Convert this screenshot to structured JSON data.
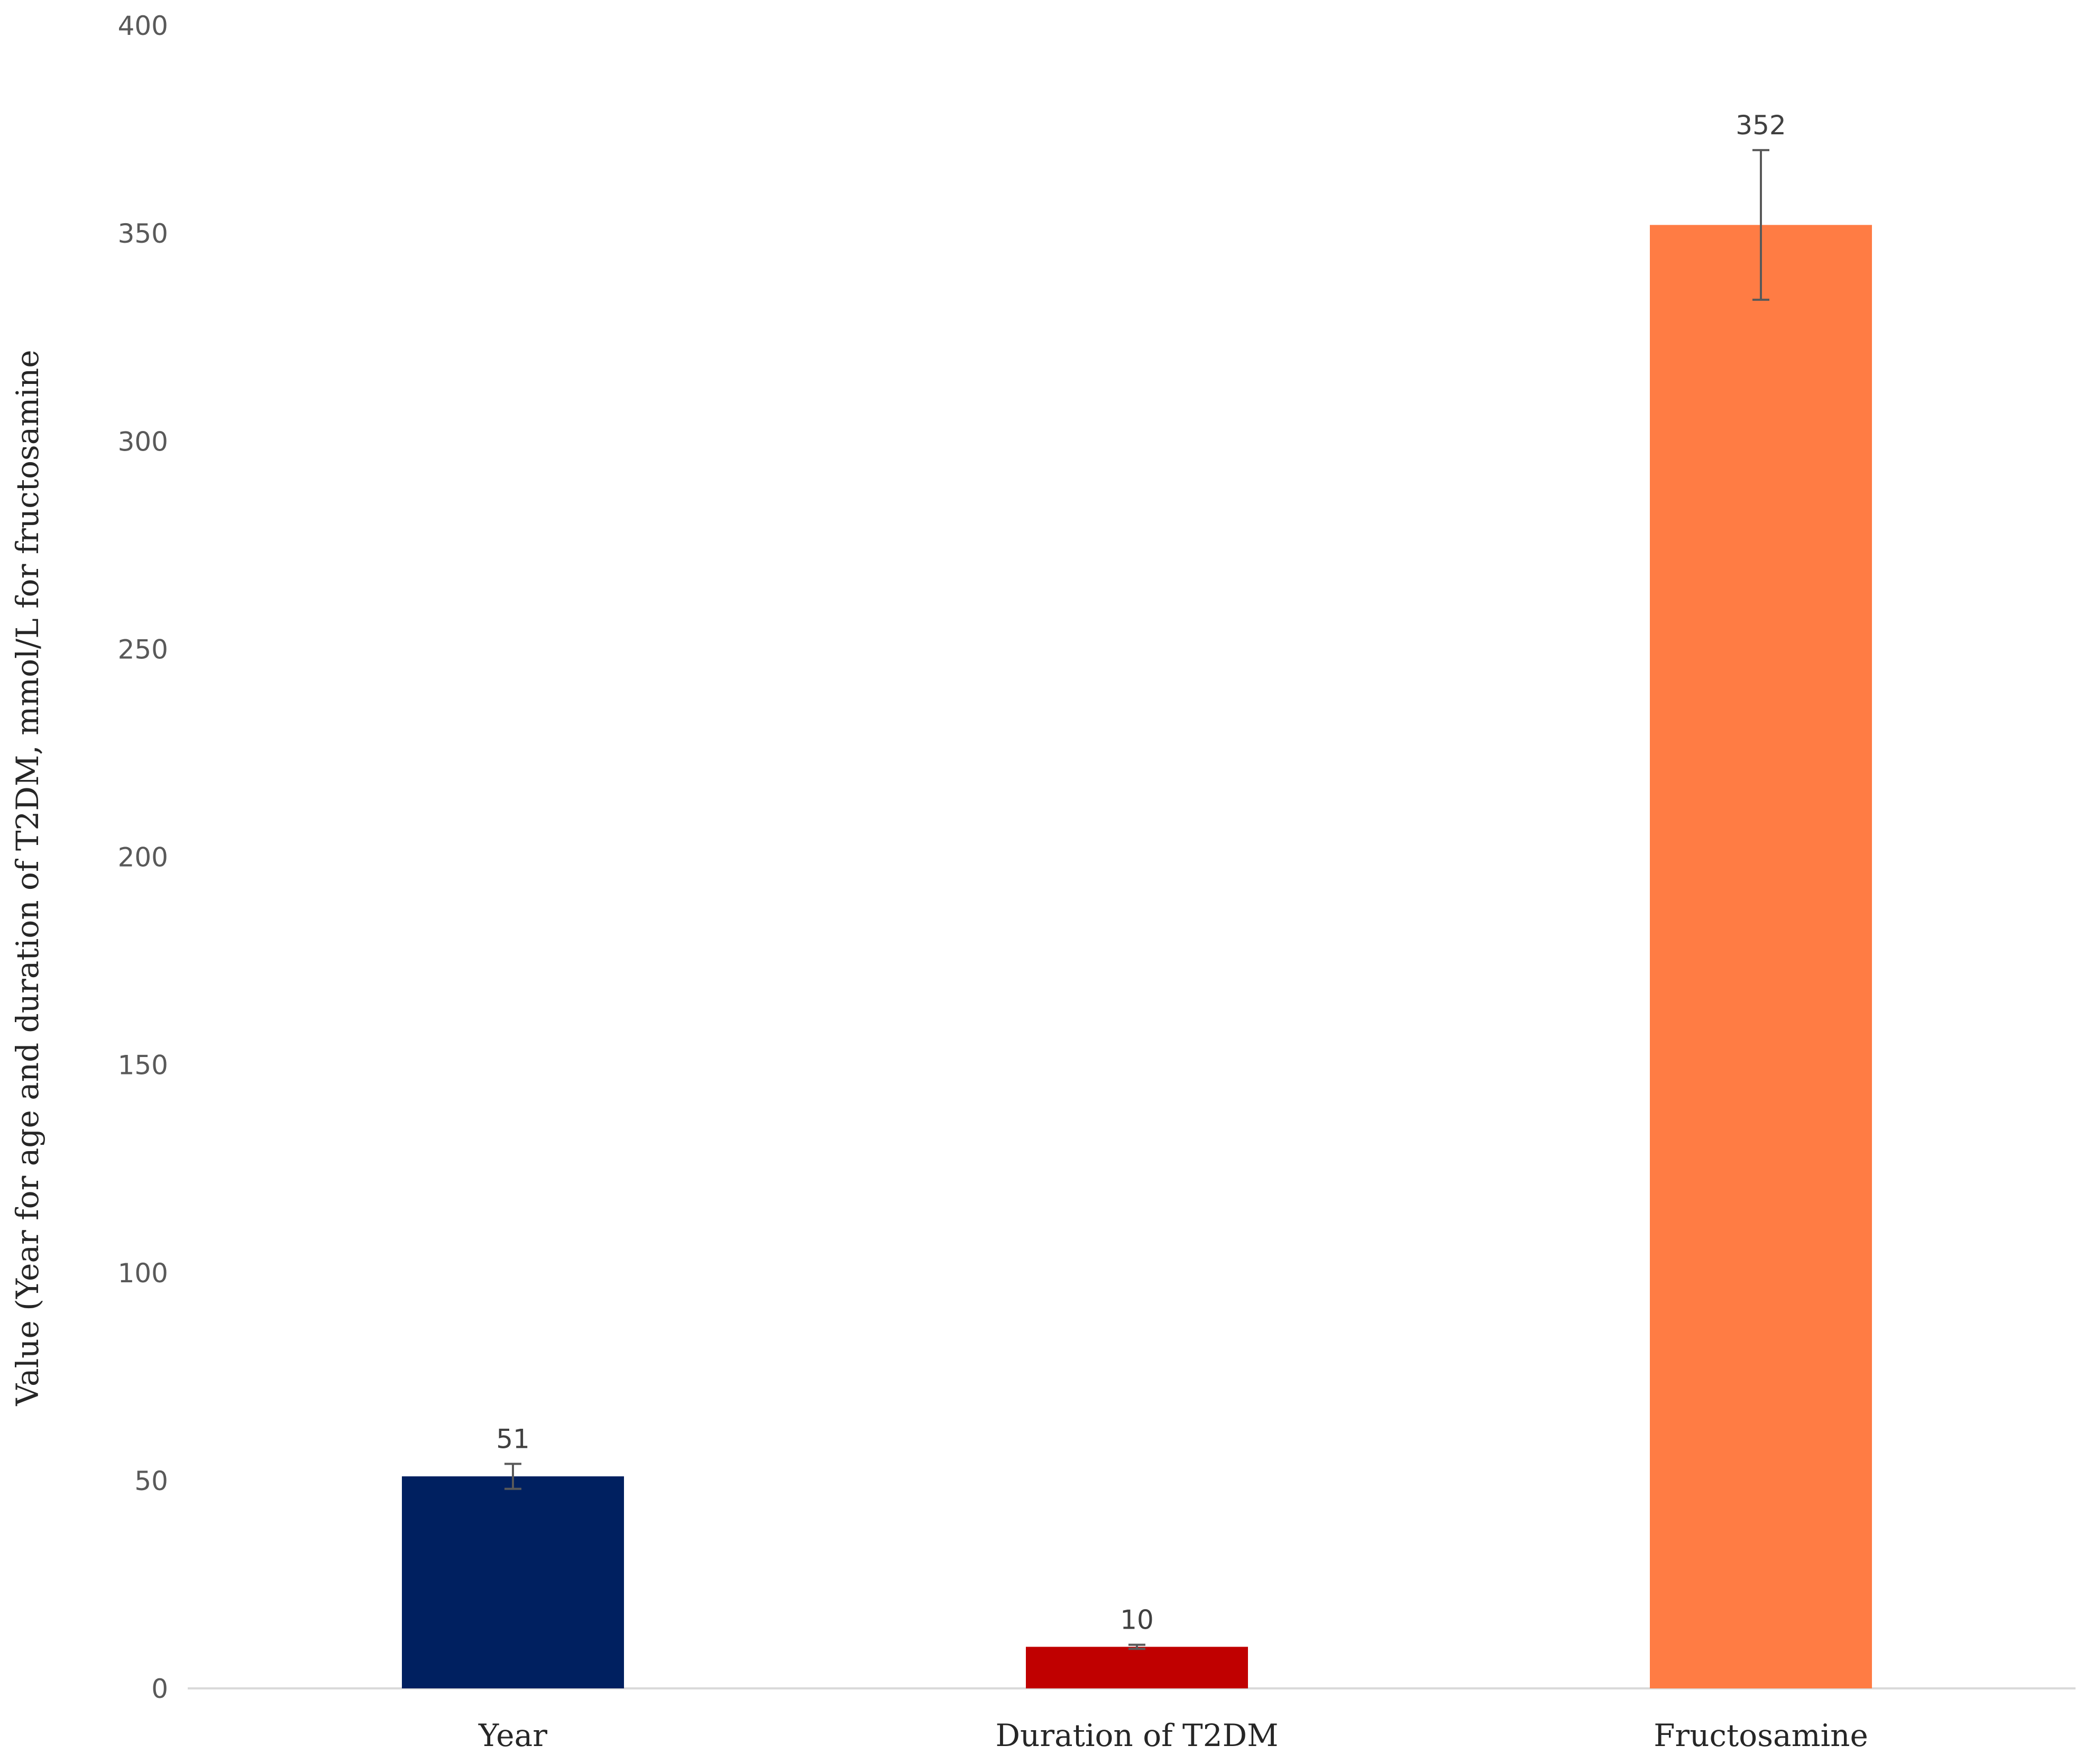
{
  "chart_data": {
    "type": "bar",
    "title": "",
    "xlabel": "",
    "ylabel": "Value (Year for age and duration of T2DM, mmol/L for fructosamine",
    "categories": [
      "Year",
      "Duration of T2DM",
      "Fructosamine"
    ],
    "values": [
      51,
      10,
      352
    ],
    "data_labels": [
      "51",
      "10",
      "352"
    ],
    "error_low": [
      48,
      9.5,
      334
    ],
    "error_high": [
      54,
      10.5,
      370
    ],
    "colors": [
      "#002060",
      "#C00000",
      "#FF7C44"
    ],
    "ylim": [
      0,
      400
    ],
    "yticks": [
      0,
      50,
      100,
      150,
      200,
      250,
      300,
      350,
      400
    ],
    "grid": false,
    "legend": "none"
  }
}
